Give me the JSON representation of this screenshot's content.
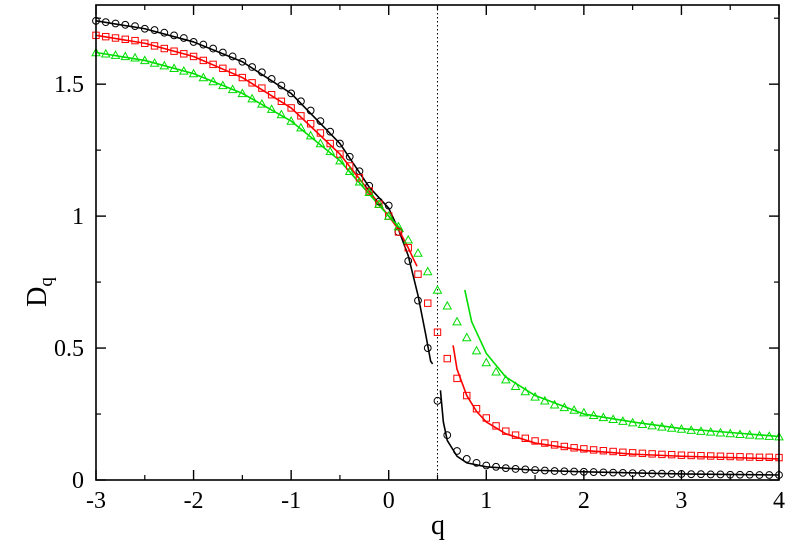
{
  "chart_data": {
    "type": "scatter",
    "title": "",
    "xlabel": "q",
    "ylabel": {
      "main": "D",
      "sub": "q"
    },
    "xlim": [
      -3,
      4
    ],
    "ylim": [
      0,
      1.8
    ],
    "x_ticks": [
      {
        "value": -3,
        "label": "-3"
      },
      {
        "value": -2,
        "label": "-2"
      },
      {
        "value": -1,
        "label": "-1"
      },
      {
        "value": 0,
        "label": "0"
      },
      {
        "value": 1,
        "label": "1"
      },
      {
        "value": 2,
        "label": "2"
      },
      {
        "value": 3,
        "label": "3"
      },
      {
        "value": 4,
        "label": "4"
      }
    ],
    "y_ticks": [
      {
        "value": 0,
        "label": "0"
      },
      {
        "value": 0.5,
        "label": "0.5"
      },
      {
        "value": 1,
        "label": "1"
      },
      {
        "value": 1.5,
        "label": "1.5"
      }
    ],
    "grid": false,
    "legend": "none",
    "reference_line": {
      "x": 0.5,
      "style": "dotted"
    },
    "series": [
      {
        "marker": "circle",
        "color": "#000000",
        "points": [
          [
            -3.0,
            1.74
          ],
          [
            -2.9,
            1.735
          ],
          [
            -2.8,
            1.73
          ],
          [
            -2.7,
            1.725
          ],
          [
            -2.6,
            1.72
          ],
          [
            -2.5,
            1.71
          ],
          [
            -2.4,
            1.705
          ],
          [
            -2.3,
            1.695
          ],
          [
            -2.2,
            1.685
          ],
          [
            -2.1,
            1.675
          ],
          [
            -2.0,
            1.66
          ],
          [
            -1.9,
            1.65
          ],
          [
            -1.8,
            1.635
          ],
          [
            -1.7,
            1.62
          ],
          [
            -1.6,
            1.605
          ],
          [
            -1.5,
            1.585
          ],
          [
            -1.4,
            1.565
          ],
          [
            -1.3,
            1.545
          ],
          [
            -1.2,
            1.52
          ],
          [
            -1.1,
            1.495
          ],
          [
            -1.0,
            1.465
          ],
          [
            -0.9,
            1.435
          ],
          [
            -0.8,
            1.4
          ],
          [
            -0.7,
            1.36
          ],
          [
            -0.6,
            1.32
          ],
          [
            -0.5,
            1.275
          ],
          [
            -0.4,
            1.225
          ],
          [
            -0.3,
            1.17
          ],
          [
            -0.2,
            1.115
          ],
          [
            -0.1,
            1.055
          ],
          [
            0.0,
            1.04
          ],
          [
            0.1,
            0.94
          ],
          [
            0.2,
            0.83
          ],
          [
            0.3,
            0.68
          ],
          [
            0.4,
            0.5
          ],
          [
            0.5,
            0.3
          ],
          [
            0.6,
            0.17
          ],
          [
            0.7,
            0.11
          ],
          [
            0.8,
            0.08
          ],
          [
            0.9,
            0.065
          ],
          [
            1.0,
            0.055
          ],
          [
            1.1,
            0.05
          ],
          [
            1.2,
            0.045
          ],
          [
            1.3,
            0.042
          ],
          [
            1.4,
            0.04
          ],
          [
            1.5,
            0.038
          ],
          [
            1.6,
            0.036
          ],
          [
            1.7,
            0.034
          ],
          [
            1.8,
            0.033
          ],
          [
            1.9,
            0.032
          ],
          [
            2.0,
            0.031
          ],
          [
            2.1,
            0.03
          ],
          [
            2.2,
            0.029
          ],
          [
            2.3,
            0.028
          ],
          [
            2.4,
            0.027
          ],
          [
            2.5,
            0.026
          ],
          [
            2.6,
            0.025
          ],
          [
            2.7,
            0.024
          ],
          [
            2.8,
            0.024
          ],
          [
            2.9,
            0.023
          ],
          [
            3.0,
            0.023
          ],
          [
            3.1,
            0.022
          ],
          [
            3.2,
            0.022
          ],
          [
            3.3,
            0.021
          ],
          [
            3.4,
            0.021
          ],
          [
            3.5,
            0.02
          ],
          [
            3.6,
            0.02
          ],
          [
            3.7,
            0.02
          ],
          [
            3.8,
            0.019
          ],
          [
            3.9,
            0.019
          ],
          [
            4.0,
            0.019
          ]
        ],
        "curve_segments": [
          [
            [
              -3.0,
              1.74
            ],
            [
              -2.5,
              1.71
            ],
            [
              -2.0,
              1.66
            ],
            [
              -1.5,
              1.585
            ],
            [
              -1.0,
              1.465
            ],
            [
              -0.5,
              1.275
            ],
            [
              -0.2,
              1.11
            ],
            [
              0.0,
              1.03
            ],
            [
              0.1,
              0.95
            ],
            [
              0.2,
              0.85
            ],
            [
              0.3,
              0.7
            ],
            [
              0.38,
              0.55
            ],
            [
              0.43,
              0.45
            ],
            [
              0.45,
              0.44
            ]
          ],
          [
            [
              0.53,
              0.34
            ],
            [
              0.56,
              0.22
            ],
            [
              0.6,
              0.15
            ],
            [
              0.7,
              0.09
            ],
            [
              0.8,
              0.065
            ],
            [
              1.0,
              0.05
            ],
            [
              1.5,
              0.037
            ],
            [
              2.0,
              0.031
            ],
            [
              3.0,
              0.023
            ],
            [
              4.0,
              0.019
            ]
          ]
        ]
      },
      {
        "marker": "square",
        "color": "#ff0000",
        "points": [
          [
            -3.0,
            1.685
          ],
          [
            -2.9,
            1.68
          ],
          [
            -2.8,
            1.675
          ],
          [
            -2.7,
            1.67
          ],
          [
            -2.6,
            1.665
          ],
          [
            -2.5,
            1.655
          ],
          [
            -2.4,
            1.645
          ],
          [
            -2.3,
            1.635
          ],
          [
            -2.2,
            1.625
          ],
          [
            -2.1,
            1.615
          ],
          [
            -2.0,
            1.605
          ],
          [
            -1.9,
            1.59
          ],
          [
            -1.8,
            1.575
          ],
          [
            -1.7,
            1.56
          ],
          [
            -1.6,
            1.545
          ],
          [
            -1.5,
            1.525
          ],
          [
            -1.4,
            1.505
          ],
          [
            -1.3,
            1.485
          ],
          [
            -1.2,
            1.46
          ],
          [
            -1.1,
            1.435
          ],
          [
            -1.0,
            1.41
          ],
          [
            -0.9,
            1.38
          ],
          [
            -0.8,
            1.35
          ],
          [
            -0.7,
            1.315
          ],
          [
            -0.6,
            1.275
          ],
          [
            -0.5,
            1.235
          ],
          [
            -0.4,
            1.19
          ],
          [
            -0.3,
            1.145
          ],
          [
            -0.2,
            1.095
          ],
          [
            -0.1,
            1.045
          ],
          [
            0.0,
            1.0
          ],
          [
            0.1,
            0.94
          ],
          [
            0.2,
            0.88
          ],
          [
            0.3,
            0.78
          ],
          [
            0.4,
            0.67
          ],
          [
            0.5,
            0.56
          ],
          [
            0.6,
            0.46
          ],
          [
            0.7,
            0.385
          ],
          [
            0.8,
            0.32
          ],
          [
            0.9,
            0.27
          ],
          [
            1.0,
            0.235
          ],
          [
            1.1,
            0.205
          ],
          [
            1.2,
            0.185
          ],
          [
            1.3,
            0.17
          ],
          [
            1.4,
            0.158
          ],
          [
            1.5,
            0.148
          ],
          [
            1.6,
            0.14
          ],
          [
            1.7,
            0.133
          ],
          [
            1.8,
            0.127
          ],
          [
            1.9,
            0.122
          ],
          [
            2.0,
            0.118
          ],
          [
            2.1,
            0.114
          ],
          [
            2.2,
            0.111
          ],
          [
            2.3,
            0.108
          ],
          [
            2.4,
            0.105
          ],
          [
            2.5,
            0.103
          ],
          [
            2.6,
            0.101
          ],
          [
            2.7,
            0.099
          ],
          [
            2.8,
            0.097
          ],
          [
            2.9,
            0.096
          ],
          [
            3.0,
            0.094
          ],
          [
            3.1,
            0.093
          ],
          [
            3.2,
            0.092
          ],
          [
            3.3,
            0.091
          ],
          [
            3.4,
            0.09
          ],
          [
            3.5,
            0.089
          ],
          [
            3.6,
            0.088
          ],
          [
            3.7,
            0.087
          ],
          [
            3.8,
            0.086
          ],
          [
            3.9,
            0.086
          ],
          [
            4.0,
            0.085
          ]
        ],
        "curve_segments": [
          [
            [
              -3.0,
              1.685
            ],
            [
              -2.5,
              1.655
            ],
            [
              -2.0,
              1.605
            ],
            [
              -1.5,
              1.525
            ],
            [
              -1.0,
              1.41
            ],
            [
              -0.5,
              1.235
            ],
            [
              0.0,
              1.0
            ],
            [
              0.1,
              0.95
            ],
            [
              0.2,
              0.88
            ],
            [
              0.25,
              0.84
            ],
            [
              0.29,
              0.81
            ]
          ],
          [
            [
              0.66,
              0.51
            ],
            [
              0.7,
              0.42
            ],
            [
              0.8,
              0.32
            ],
            [
              0.9,
              0.26
            ],
            [
              1.0,
              0.22
            ],
            [
              1.2,
              0.175
            ],
            [
              1.5,
              0.14
            ],
            [
              2.0,
              0.112
            ],
            [
              2.5,
              0.098
            ],
            [
              3.0,
              0.09
            ],
            [
              4.0,
              0.08
            ]
          ]
        ]
      },
      {
        "marker": "triangle",
        "color": "#00dd00",
        "points": [
          [
            -3.0,
            1.62
          ],
          [
            -2.9,
            1.615
          ],
          [
            -2.8,
            1.61
          ],
          [
            -2.7,
            1.605
          ],
          [
            -2.6,
            1.6
          ],
          [
            -2.5,
            1.59
          ],
          [
            -2.4,
            1.58
          ],
          [
            -2.3,
            1.57
          ],
          [
            -2.2,
            1.56
          ],
          [
            -2.1,
            1.55
          ],
          [
            -2.0,
            1.54
          ],
          [
            -1.9,
            1.525
          ],
          [
            -1.8,
            1.51
          ],
          [
            -1.7,
            1.495
          ],
          [
            -1.6,
            1.48
          ],
          [
            -1.5,
            1.465
          ],
          [
            -1.4,
            1.445
          ],
          [
            -1.3,
            1.425
          ],
          [
            -1.2,
            1.405
          ],
          [
            -1.1,
            1.385
          ],
          [
            -1.0,
            1.36
          ],
          [
            -0.9,
            1.335
          ],
          [
            -0.8,
            1.305
          ],
          [
            -0.7,
            1.275
          ],
          [
            -0.6,
            1.245
          ],
          [
            -0.5,
            1.21
          ],
          [
            -0.4,
            1.17
          ],
          [
            -0.3,
            1.13
          ],
          [
            -0.2,
            1.09
          ],
          [
            -0.1,
            1.045
          ],
          [
            0.0,
            1.0
          ],
          [
            0.1,
            0.96
          ],
          [
            0.2,
            0.91
          ],
          [
            0.3,
            0.86
          ],
          [
            0.4,
            0.79
          ],
          [
            0.5,
            0.72
          ],
          [
            0.6,
            0.66
          ],
          [
            0.7,
            0.6
          ],
          [
            0.8,
            0.54
          ],
          [
            0.9,
            0.49
          ],
          [
            1.0,
            0.445
          ],
          [
            1.1,
            0.41
          ],
          [
            1.2,
            0.38
          ],
          [
            1.3,
            0.355
          ],
          [
            1.4,
            0.335
          ],
          [
            1.5,
            0.315
          ],
          [
            1.6,
            0.3
          ],
          [
            1.7,
            0.285
          ],
          [
            1.8,
            0.275
          ],
          [
            1.9,
            0.265
          ],
          [
            2.0,
            0.255
          ],
          [
            2.1,
            0.245
          ],
          [
            2.2,
            0.237
          ],
          [
            2.3,
            0.23
          ],
          [
            2.4,
            0.223
          ],
          [
            2.5,
            0.217
          ],
          [
            2.6,
            0.211
          ],
          [
            2.7,
            0.206
          ],
          [
            2.8,
            0.201
          ],
          [
            2.9,
            0.197
          ],
          [
            3.0,
            0.193
          ],
          [
            3.1,
            0.189
          ],
          [
            3.2,
            0.185
          ],
          [
            3.3,
            0.182
          ],
          [
            3.4,
            0.179
          ],
          [
            3.5,
            0.176
          ],
          [
            3.6,
            0.173
          ],
          [
            3.7,
            0.171
          ],
          [
            3.8,
            0.168
          ],
          [
            3.9,
            0.166
          ],
          [
            4.0,
            0.164
          ]
        ],
        "curve_segments": [
          [
            [
              -3.0,
              1.62
            ],
            [
              -2.5,
              1.59
            ],
            [
              -2.0,
              1.54
            ],
            [
              -1.5,
              1.465
            ],
            [
              -1.0,
              1.36
            ],
            [
              -0.5,
              1.21
            ],
            [
              0.0,
              1.0
            ],
            [
              0.1,
              0.96
            ],
            [
              0.15,
              0.94
            ]
          ],
          [
            [
              0.78,
              0.72
            ],
            [
              0.85,
              0.6
            ],
            [
              1.0,
              0.48
            ],
            [
              1.2,
              0.39
            ],
            [
              1.5,
              0.32
            ],
            [
              2.0,
              0.25
            ],
            [
              2.5,
              0.22
            ],
            [
              3.0,
              0.195
            ],
            [
              3.5,
              0.18
            ],
            [
              4.0,
              0.165
            ]
          ]
        ]
      }
    ]
  }
}
